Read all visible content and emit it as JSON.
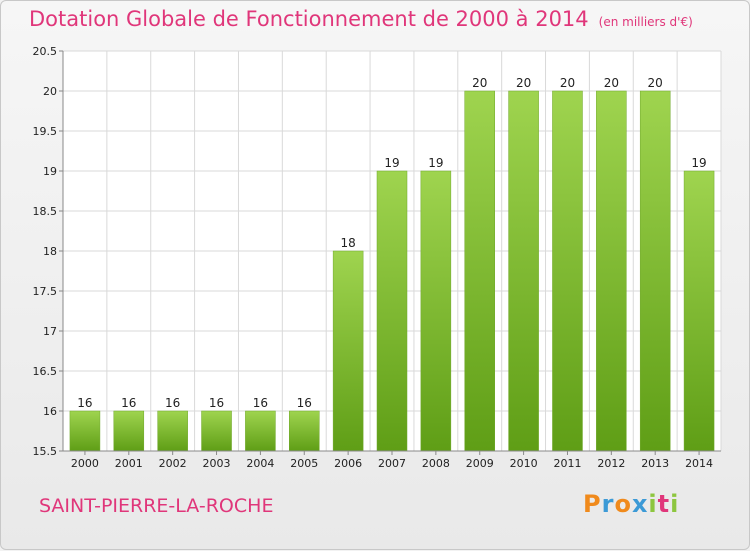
{
  "header": {
    "title": "Dotation Globale de Fonctionnement de 2000 à 2014",
    "unit": "(en milliers d'€)"
  },
  "footer": {
    "commune": "SAINT-PIERRE-LA-ROCHE",
    "logo": "Proxiti",
    "logo_colors": [
      "#f08a1c",
      "#3c9ad6",
      "#f08a1c",
      "#3c9ad6",
      "#8dc63f",
      "#e0367a",
      "#8dc63f"
    ]
  },
  "colors": {
    "bar_top": "#9fd44f",
    "bar_bottom": "#5f9e16",
    "title": "#e0367a",
    "grid": "#d9d9d9"
  },
  "chart_data": {
    "type": "bar",
    "title": "Dotation Globale de Fonctionnement de 2000 à 2014",
    "xlabel": "",
    "ylabel": "",
    "ylim": [
      15.5,
      20.5
    ],
    "yticks": [
      15.5,
      16,
      16.5,
      17,
      17.5,
      18,
      18.5,
      19,
      19.5,
      20,
      20.5
    ],
    "ytick_labels": [
      "15.5",
      "16",
      "16.5",
      "17",
      "17.5",
      "18",
      "18.5",
      "19",
      "19.5",
      "20",
      "20.5"
    ],
    "grid": true,
    "categories": [
      "2000",
      "2001",
      "2002",
      "2003",
      "2004",
      "2005",
      "2006",
      "2007",
      "2008",
      "2009",
      "2010",
      "2011",
      "2012",
      "2013",
      "2014"
    ],
    "values": [
      16,
      16,
      16,
      16,
      16,
      16,
      18,
      19,
      19,
      20,
      20,
      20,
      20,
      20,
      19
    ],
    "value_labels": [
      "16",
      "16",
      "16",
      "16",
      "16",
      "16",
      "18",
      "19",
      "19",
      "20",
      "20",
      "20",
      "20",
      "20",
      "19"
    ]
  }
}
